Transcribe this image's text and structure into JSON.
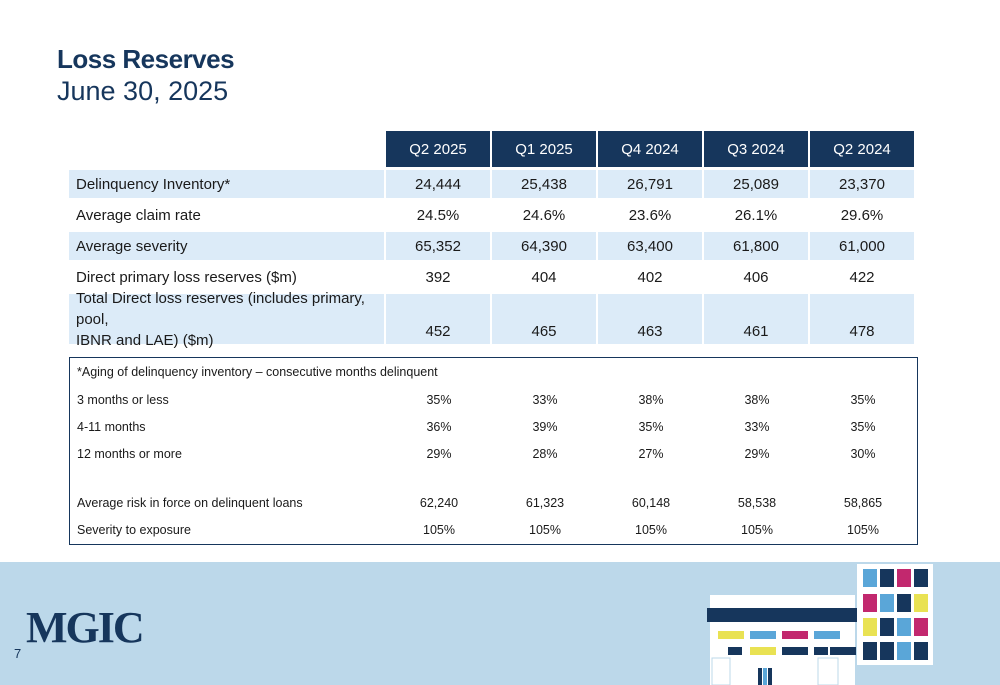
{
  "header": {
    "title": "Loss Reserves",
    "subtitle": "June 30, 2025"
  },
  "table": {
    "columns": [
      "Q2 2025",
      "Q1 2025",
      "Q4 2024",
      "Q3 2024",
      "Q2 2024"
    ],
    "rows": [
      {
        "label": "Delinquency Inventory*",
        "values": [
          "24,444",
          "25,438",
          "26,791",
          "25,089",
          "23,370"
        ]
      },
      {
        "label": "Average claim rate",
        "values": [
          "24.5%",
          "24.6%",
          "23.6%",
          "26.1%",
          "29.6%"
        ]
      },
      {
        "label": "Average severity",
        "values": [
          "65,352",
          "64,390",
          "63,400",
          "61,800",
          "61,000"
        ]
      },
      {
        "label": "Direct primary loss reserves ($m)",
        "values": [
          "392",
          "404",
          "402",
          "406",
          "422"
        ]
      },
      {
        "label_line1": "Total Direct loss reserves (includes primary, pool,",
        "label_line2": "IBNR and LAE) ($m)",
        "values": [
          "452",
          "465",
          "463",
          "461",
          "478"
        ]
      }
    ]
  },
  "aging": {
    "note": "*Aging of delinquency inventory – consecutive months delinquent",
    "rows": [
      {
        "label": "3 months or less",
        "values": [
          "35%",
          "33%",
          "38%",
          "38%",
          "35%"
        ]
      },
      {
        "label": "4-11 months",
        "values": [
          "36%",
          "39%",
          "35%",
          "33%",
          "35%"
        ]
      },
      {
        "label": "12 months or more",
        "values": [
          "29%",
          "28%",
          "27%",
          "29%",
          "30%"
        ]
      }
    ],
    "extra_rows": [
      {
        "label": "Average risk in force on delinquent loans",
        "values": [
          "62,240",
          "61,323",
          "60,148",
          "58,538",
          "58,865"
        ]
      },
      {
        "label": "Severity to exposure",
        "values": [
          "105%",
          "105%",
          "105%",
          "105%",
          "105%"
        ]
      }
    ]
  },
  "footer": {
    "logo": "MGIC",
    "page_number": "7"
  },
  "colors": {
    "navy": "#16365c",
    "row_shade": "#dcebf8",
    "footer_band": "#bcd8ea",
    "accent_yellow": "#e9e253",
    "accent_blue": "#5aa6d8",
    "accent_magenta": "#c2286e"
  }
}
